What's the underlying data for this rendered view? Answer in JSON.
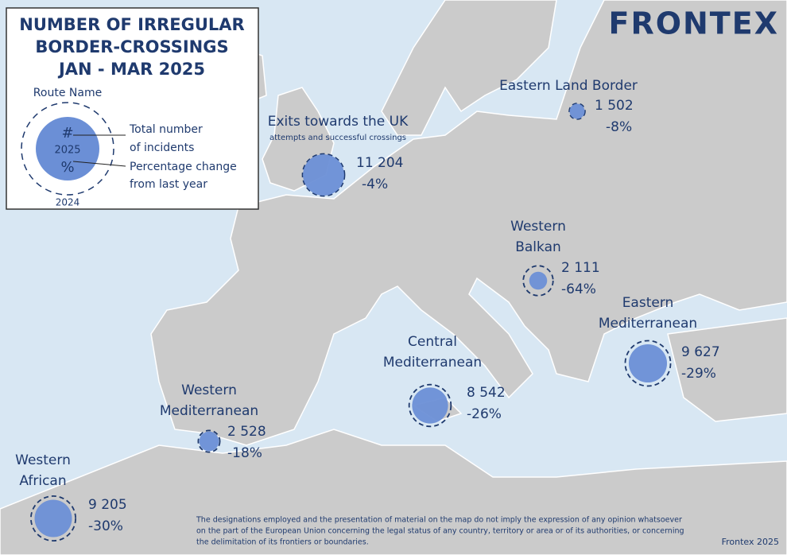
{
  "legend": {
    "title": [
      "NUMBER OF IRREGULAR",
      "BORDER-CROSSINGS",
      "JAN - MAR 2025"
    ],
    "route_name": "Route Name",
    "count_symbol": "#",
    "current_year": "2025",
    "change_symbol": "%",
    "previous_year": "2024",
    "count_text": [
      "Total number",
      "of incidents"
    ],
    "change_text": [
      "Percentage change",
      "from last year"
    ]
  },
  "logo": "FRONTEX",
  "routes": [
    {
      "name": [
        "Eastern Land Border"
      ],
      "count": 1502,
      "count_label": "1 502",
      "change": -8,
      "change_label": "-8%"
    },
    {
      "name": [
        "Exits towards the UK"
      ],
      "subtitle": "attempts and successful crossings",
      "count": 11204,
      "count_label": "11 204",
      "change": -4,
      "change_label": "-4%"
    },
    {
      "name": [
        "Western",
        "Balkan"
      ],
      "count": 2111,
      "count_label": "2 111",
      "change": -64,
      "change_label": "-64%"
    },
    {
      "name": [
        "Eastern",
        "Mediterranean"
      ],
      "count": 9627,
      "count_label": "9 627",
      "change": -29,
      "change_label": "-29%"
    },
    {
      "name": [
        "Central",
        "Mediterranean"
      ],
      "count": 8542,
      "count_label": "8 542",
      "change": -26,
      "change_label": "-26%"
    },
    {
      "name": [
        "Western",
        "Mediterranean"
      ],
      "count": 2528,
      "count_label": "2 528",
      "change": -18,
      "change_label": "-18%"
    },
    {
      "name": [
        "Western",
        "African"
      ],
      "count": 9205,
      "count_label": "9 205",
      "change": -30,
      "change_label": "-30%"
    }
  ],
  "disclaimer": [
    "The designations employed and the presentation of material on the map do not imply the expression of any opinion whatsoever",
    "on the part of the European Union concerning the legal status of any country, territory or area or of its authorities, or concerning",
    "the delimitation of its frontiers or boundaries."
  ],
  "credit": "Frontex 2025"
}
